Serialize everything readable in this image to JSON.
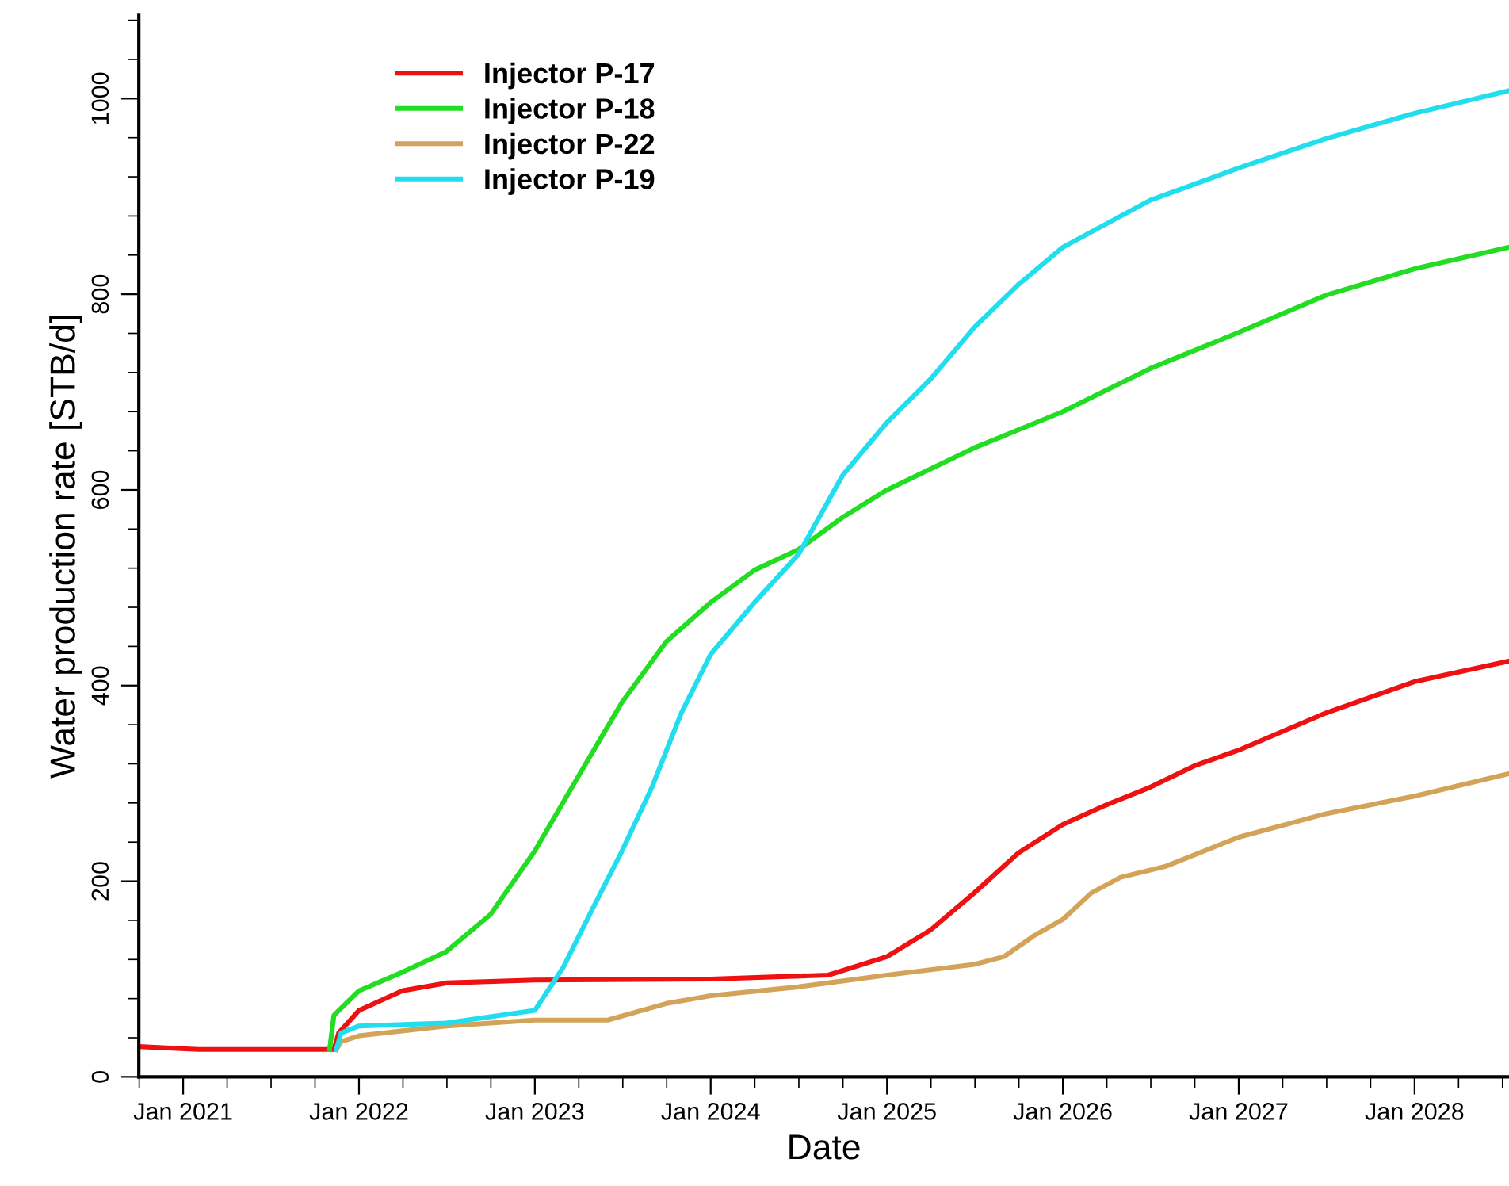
{
  "chart_data": {
    "type": "line",
    "xlabel": "Date",
    "ylabel": "Water production rate [STB/d]",
    "xlim": [
      "2020-10-01",
      "2028-07-15"
    ],
    "ylim": [
      0,
      1085
    ],
    "xticks": [
      {
        "value": "2021-01",
        "label": "Jan 2021"
      },
      {
        "value": "2022-01",
        "label": "Jan 2022"
      },
      {
        "value": "2023-01",
        "label": "Jan 2023"
      },
      {
        "value": "2024-01",
        "label": "Jan 2024"
      },
      {
        "value": "2025-01",
        "label": "Jan 2025"
      },
      {
        "value": "2026-01",
        "label": "Jan 2026"
      },
      {
        "value": "2027-01",
        "label": "Jan 2027"
      },
      {
        "value": "2028-01",
        "label": "Jan 2028"
      }
    ],
    "yticks": [
      0,
      200,
      400,
      600,
      800,
      1000
    ],
    "legend": "top left",
    "grid": false,
    "marker": "none",
    "line_style": "solid",
    "series": [
      {
        "name": "Injector P-17",
        "color": "#ee1111",
        "x": [
          "2020-10-01",
          "2021-02-01",
          "2021-11-10",
          "2021-11-20",
          "2022-01",
          "2022-04",
          "2022-07",
          "2023-01",
          "2024-01",
          "2024-09",
          "2025-01",
          "2025-04",
          "2025-07",
          "2025-10",
          "2026-01",
          "2026-04",
          "2026-07",
          "2026-10",
          "2027-01",
          "2027-07",
          "2028-01",
          "2028-07-15"
        ],
        "values": [
          31,
          28,
          28,
          45,
          68,
          88,
          96,
          99,
          100,
          104,
          123,
          150,
          188,
          229,
          258,
          278,
          296,
          318,
          334,
          372,
          404,
          425
        ]
      },
      {
        "name": "Injector P-18",
        "color": "#22dd22",
        "x": [
          "2021-11-01",
          "2021-11-10",
          "2022-01",
          "2022-04",
          "2022-07",
          "2022-10",
          "2023-01",
          "2023-04",
          "2023-07",
          "2023-10",
          "2024-01",
          "2024-04",
          "2024-07",
          "2024-10",
          "2025-01",
          "2025-07",
          "2026-01",
          "2026-07",
          "2027-01",
          "2027-07",
          "2028-01",
          "2028-07-15"
        ],
        "values": [
          28,
          63,
          88,
          107,
          128,
          166,
          231,
          307,
          383,
          445,
          485,
          518,
          539,
          572,
          600,
          643,
          680,
          724,
          761,
          799,
          826,
          848
        ]
      },
      {
        "name": "Injector P-22",
        "color": "#d4a35a",
        "x": [
          "2021-11-15",
          "2021-11-25",
          "2022-01",
          "2022-07",
          "2023-01",
          "2023-06",
          "2023-10",
          "2024-01",
          "2024-07",
          "2025-01",
          "2025-07",
          "2025-09",
          "2025-11",
          "2026-01",
          "2026-03",
          "2026-05",
          "2026-08",
          "2027-01",
          "2027-07",
          "2028-01",
          "2028-07-15"
        ],
        "values": [
          28,
          36,
          42,
          52,
          58,
          58,
          75,
          83,
          92,
          104,
          115,
          123,
          144,
          161,
          188,
          204,
          215,
          245,
          269,
          287,
          310
        ]
      },
      {
        "name": "Injector P-19",
        "color": "#22ddee",
        "x": [
          "2021-11-15",
          "2021-11-25",
          "2022-01",
          "2022-07",
          "2023-01",
          "2023-03",
          "2023-05",
          "2023-07",
          "2023-09",
          "2023-11",
          "2024-01",
          "2024-04",
          "2024-07",
          "2024-10",
          "2025-01",
          "2025-04",
          "2025-07",
          "2025-10",
          "2026-01",
          "2026-07",
          "2027-01",
          "2027-07",
          "2028-01",
          "2028-07-15"
        ],
        "values": [
          28,
          45,
          52,
          55,
          68,
          112,
          172,
          231,
          296,
          372,
          432,
          485,
          534,
          615,
          669,
          713,
          766,
          810,
          848,
          896,
          929,
          959,
          985,
          1008
        ]
      }
    ]
  }
}
